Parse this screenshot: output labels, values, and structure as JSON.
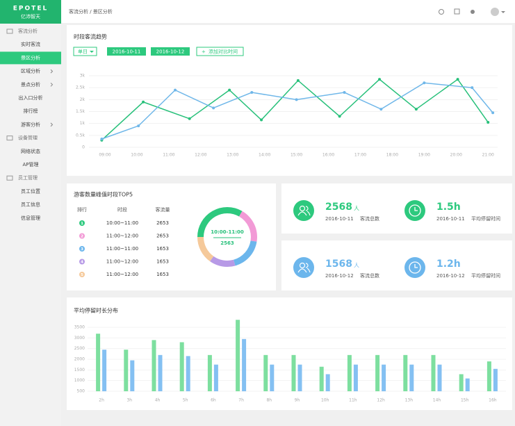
{
  "logo": {
    "brand": "EPOTEL",
    "name": "亿沛智天"
  },
  "header": {
    "breadcrumb": "客流分析 / 景区分析"
  },
  "sidebar": {
    "items": [
      {
        "label": "客流分析",
        "section": true
      },
      {
        "label": "实时客流"
      },
      {
        "label": "景区分析",
        "active": true
      },
      {
        "label": "区域分析",
        "arrow": true
      },
      {
        "label": "景点分析",
        "arrow": true
      },
      {
        "label": "出入口分析"
      },
      {
        "label": "排行榜"
      },
      {
        "label": "游客分析",
        "arrow": true
      },
      {
        "label": "设备管理",
        "section": true
      },
      {
        "label": "网络状态"
      },
      {
        "label": "AP管理"
      },
      {
        "label": "员工管理",
        "section": true
      },
      {
        "label": "员工位置"
      },
      {
        "label": "员工信息"
      },
      {
        "label": "信息管理"
      }
    ]
  },
  "controls": {
    "mode": "单日",
    "add": "添加对比时间"
  },
  "top5": {
    "title": "游客数量峰值时段TOP5",
    "columns": [
      "排行",
      "时段",
      "客流量"
    ],
    "rows": [
      {
        "rank": 1,
        "period": "10:00~11:00",
        "count": 2653
      },
      {
        "rank": 2,
        "period": "11:00~12:00",
        "count": 2653
      },
      {
        "rank": 3,
        "period": "11:00~11:00",
        "count": 1653
      },
      {
        "rank": 4,
        "period": "11:00~12:00",
        "count": 1653
      },
      {
        "rank": 5,
        "period": "11:00~12:00",
        "count": 1653
      }
    ]
  },
  "stats": [
    {
      "value": "2568",
      "unit": "人",
      "date": "2016-10-11",
      "label": "客流总数",
      "color": "#2dc97e",
      "icon": "people"
    },
    {
      "value": "1.5h",
      "date": "2016-10-11",
      "label": "平均停留时间",
      "color": "#2dc97e",
      "icon": "clock"
    },
    {
      "value": "1568",
      "unit": "人",
      "date": "2016-10-12",
      "label": "客流总数",
      "color": "#6cb6ec",
      "icon": "people"
    },
    {
      "value": "1.2h",
      "date": "2016-10-12",
      "label": "平均停留时间",
      "color": "#6cb6ec",
      "icon": "clock"
    }
  ],
  "chart_data": [
    {
      "type": "line",
      "title": "时段客流趋势",
      "xlim": [
        8.5,
        21.3
      ],
      "ylim": [
        0,
        3
      ],
      "grid": true,
      "xticks": [
        {
          "value": 9,
          "label": "09:00"
        },
        {
          "value": 10,
          "label": "10:00"
        },
        {
          "value": 11,
          "label": "11:00"
        },
        {
          "value": 12,
          "label": "12:00"
        },
        {
          "value": 13,
          "label": "13:00"
        },
        {
          "value": 14,
          "label": "14:00"
        },
        {
          "value": 15,
          "label": "15:00"
        },
        {
          "value": 16,
          "label": "16:00"
        },
        {
          "value": 17,
          "label": "17:00"
        },
        {
          "value": 18,
          "label": "18:00"
        },
        {
          "value": 19,
          "label": "19:00"
        },
        {
          "value": 20,
          "label": "20:00"
        },
        {
          "value": 21,
          "label": "21:00"
        }
      ],
      "yticks": [
        0,
        {
          "value": 0.5,
          "label": "0.5k"
        },
        {
          "value": 1,
          "label": "1k"
        },
        {
          "value": 1.5,
          "label": "1.5k"
        },
        {
          "value": 2,
          "label": "2k"
        },
        {
          "value": 2.5,
          "label": "2.5k"
        },
        {
          "value": 3,
          "label": "3k"
        }
      ],
      "series": [
        {
          "name": "2016-10-11",
          "color": "#27c07a",
          "x": [
            8.9,
            10.2,
            11.65,
            12.9,
            13.9,
            15.05,
            16.35,
            17.6,
            18.75,
            20.05,
            21.0
          ],
          "values": [
            0.3,
            1.9,
            1.2,
            2.4,
            1.15,
            2.8,
            1.3,
            2.85,
            1.6,
            2.85,
            1.05
          ]
        },
        {
          "name": "2016-10-12",
          "color": "#6fb7e9",
          "x": [
            8.9,
            10.05,
            11.2,
            12.4,
            13.6,
            15.0,
            16.5,
            17.65,
            19.0,
            20.5,
            21.15
          ],
          "values": [
            0.35,
            0.9,
            2.4,
            1.65,
            2.3,
            2.0,
            2.3,
            1.6,
            2.7,
            2.5,
            1.45
          ]
        }
      ]
    },
    {
      "type": "pie",
      "donut": true,
      "center_label": "10:00-11:00",
      "center_value": 2563,
      "values": [
        33,
        19,
        18,
        14,
        15
      ],
      "colors": [
        "#2dc97e",
        "#f29ad6",
        "#6cb6ec",
        "#b79ae6",
        "#f5c99a"
      ]
    },
    {
      "type": "bar",
      "title": "平均停留时长分布",
      "ylim": [
        500,
        3900
      ],
      "yticks": [
        500,
        1000,
        1500,
        2000,
        2500,
        3000,
        3500
      ],
      "grid": true,
      "categories": [
        "2h",
        "3h",
        "4h",
        "5h",
        "6h",
        "7h",
        "8h",
        "9h",
        "10h",
        "11h",
        "12h",
        "13h",
        "14h",
        "15h",
        "16h"
      ],
      "series": [
        {
          "color": "#7ddf9f",
          "values": [
            3200,
            2450,
            2900,
            2800,
            2200,
            3850,
            2200,
            2200,
            1650,
            2200,
            2200,
            2200,
            2200,
            1300,
            1900
          ]
        },
        {
          "color": "#84c0f2",
          "values": [
            2450,
            1950,
            2200,
            2150,
            1750,
            2950,
            1750,
            1750,
            1300,
            1750,
            1750,
            1750,
            1750,
            1100,
            1550
          ]
        }
      ]
    }
  ]
}
